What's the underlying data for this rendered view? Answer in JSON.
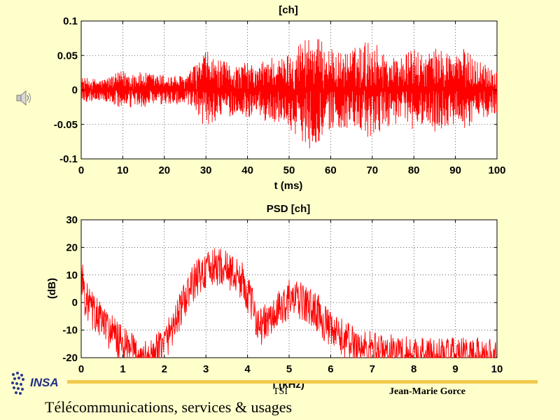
{
  "chart_data": [
    {
      "type": "line",
      "title": "[ch]",
      "xlabel": "t (ms)",
      "ylabel": "",
      "xlim": [
        0,
        100
      ],
      "ylim": [
        -0.1,
        0.1
      ],
      "xticks": [
        0,
        10,
        20,
        30,
        40,
        50,
        60,
        70,
        80,
        90,
        100
      ],
      "yticks": [
        -0.1,
        -0.05,
        0,
        0.05,
        0.1
      ],
      "xticklabels": [
        "0",
        "10",
        "20",
        "30",
        "40",
        "50",
        "60",
        "70",
        "80",
        "90",
        "100"
      ],
      "yticklabels": [
        "-0.1",
        "-0.05",
        "0",
        "0.05",
        "0.1"
      ],
      "grid": true,
      "color": "#FF0000",
      "envelope": {
        "x": [
          0,
          5,
          10,
          15,
          20,
          25,
          28,
          30,
          32,
          35,
          38,
          40,
          42,
          45,
          48,
          50,
          52,
          55,
          58,
          60,
          62,
          65,
          68,
          70,
          72,
          75,
          78,
          80,
          82,
          85,
          88,
          90,
          92,
          95,
          98,
          100
        ],
        "amplitude": [
          0.018,
          0.015,
          0.028,
          0.025,
          0.022,
          0.02,
          0.04,
          0.058,
          0.045,
          0.04,
          0.035,
          0.042,
          0.03,
          0.052,
          0.045,
          0.055,
          0.068,
          0.085,
          0.07,
          0.06,
          0.055,
          0.058,
          0.07,
          0.075,
          0.06,
          0.048,
          0.052,
          0.062,
          0.05,
          0.06,
          0.058,
          0.052,
          0.06,
          0.045,
          0.038,
          0.032
        ]
      }
    },
    {
      "type": "line",
      "title": "PSD [ch]",
      "xlabel": "f (kHz)",
      "ylabel": "(dB)",
      "xlim": [
        0,
        10
      ],
      "ylim": [
        -20,
        30
      ],
      "xticks": [
        0,
        1,
        2,
        3,
        4,
        5,
        6,
        7,
        8,
        9,
        10
      ],
      "yticks": [
        -20,
        -10,
        0,
        10,
        20,
        30
      ],
      "xticklabels": [
        "0",
        "1",
        "2",
        "3",
        "4",
        "5",
        "6",
        "7",
        "8",
        "9",
        "10"
      ],
      "yticklabels": [
        "-20",
        "-10",
        "0",
        "10",
        "20",
        "30"
      ],
      "grid": true,
      "color": "#FF0000",
      "trend": {
        "x": [
          0,
          0.1,
          0.3,
          0.6,
          1.0,
          1.4,
          1.7,
          2.0,
          2.3,
          2.6,
          2.8,
          3.0,
          3.3,
          3.6,
          3.9,
          4.1,
          4.3,
          4.6,
          5.0,
          5.3,
          5.7,
          6.0,
          6.4,
          6.8,
          7.2,
          7.6,
          8.0,
          8.5,
          9.0,
          9.5,
          10.0
        ],
        "db": [
          12,
          2,
          -3,
          -8,
          -15,
          -19,
          -20,
          -14,
          -5,
          5,
          10,
          12,
          14,
          12,
          8,
          0,
          -8,
          -5,
          2,
          1,
          -3,
          -10,
          -13,
          -16,
          -17,
          -18,
          -18,
          -19,
          -19,
          -19,
          -19
        ]
      }
    }
  ],
  "icons": {
    "speaker": "speaker-icon",
    "logo": "insa-logo"
  },
  "logo": {
    "text": "INSA"
  },
  "footer": {
    "center": "TSI",
    "author": "Jean-Marie Gorce",
    "course": "Télécommunications, services & usages"
  }
}
